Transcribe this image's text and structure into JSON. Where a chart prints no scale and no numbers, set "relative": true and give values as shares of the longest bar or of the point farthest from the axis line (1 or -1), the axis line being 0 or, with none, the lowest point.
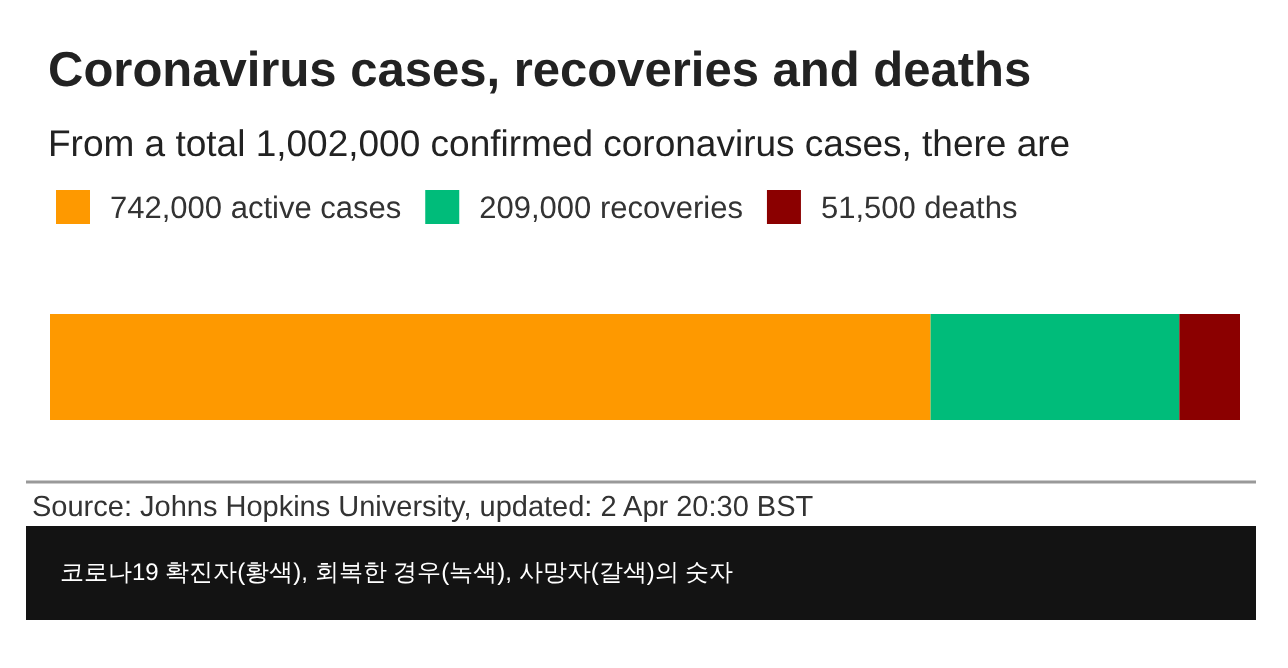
{
  "chart_data": {
    "type": "bar",
    "orientation": "horizontal",
    "stacked": true,
    "relative": true,
    "title": "Coronavirus cases, recoveries and deaths",
    "subtitle": "From a total 1,002,000 confirmed coronavirus cases, there are",
    "categories": [
      null
    ],
    "series": [
      {
        "name": "742,000 active cases",
        "color": "#fe9900",
        "values": [
          0.74
        ]
      },
      {
        "name": "209,000 recoveries",
        "color": "#00bc7a",
        "values": [
          0.209
        ]
      },
      {
        "name": "51,500 deaths",
        "color": "#8b0000",
        "values": [
          0.051
        ]
      }
    ],
    "legend": "top left",
    "annotations": [
      "Source: Johns Hopkins University, updated:  2 Apr 20:30 BST",
      "코로나19 확진자(황색), 회복한 경우(녹색), 사망자(갈색)의 숫자"
    ]
  }
}
